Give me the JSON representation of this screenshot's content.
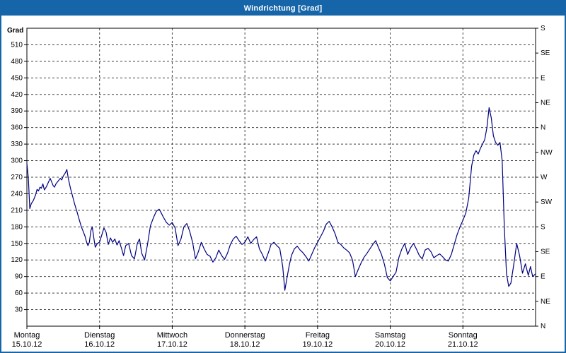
{
  "window": {
    "title": "Windrichtung [Grad]",
    "titlebar_color": "#1565a8",
    "border_color": "#1565a8"
  },
  "chart_data": {
    "type": "line",
    "title": "Windrichtung [Grad]",
    "grid": {
      "horizontal": true,
      "vertical": true,
      "style": "dashed",
      "color": "#404040"
    },
    "y_axis": {
      "label": "Grad",
      "min": 0,
      "max": 540,
      "tick_step": 30,
      "tick_labels_top_to_bottom": [
        "510",
        "480",
        "450",
        "420",
        "390",
        "360",
        "330",
        "300",
        "270",
        "240",
        "210",
        "180",
        "150",
        "120",
        "90",
        "60",
        "30"
      ]
    },
    "right_axis": {
      "tick_step": 45,
      "labels_top_to_bottom": [
        "S",
        "SE",
        "E",
        "NE",
        "N",
        "NW",
        "W",
        "SW",
        "S",
        "SE",
        "E",
        "NE",
        "N"
      ]
    },
    "x_axis": {
      "min": 0,
      "max": 7,
      "days": [
        {
          "name": "Montag",
          "date": "15.10.12",
          "x": 0
        },
        {
          "name": "Dienstag",
          "date": "16.10.12",
          "x": 1
        },
        {
          "name": "Mittwoch",
          "date": "17.10.12",
          "x": 2
        },
        {
          "name": "Donnerstag",
          "date": "18.10.12",
          "x": 3
        },
        {
          "name": "Freitag",
          "date": "19.10.12",
          "x": 4
        },
        {
          "name": "Samstag",
          "date": "20.10.12",
          "x": 5
        },
        {
          "name": "Sonntag",
          "date": "21.10.12",
          "x": 6
        }
      ]
    },
    "series": [
      {
        "name": "Windrichtung",
        "color": "#000080",
        "points": [
          [
            0.0,
            295
          ],
          [
            0.02,
            268
          ],
          [
            0.04,
            213
          ],
          [
            0.06,
            222
          ],
          [
            0.09,
            228
          ],
          [
            0.12,
            238
          ],
          [
            0.14,
            248
          ],
          [
            0.16,
            245
          ],
          [
            0.18,
            252
          ],
          [
            0.2,
            250
          ],
          [
            0.22,
            258
          ],
          [
            0.24,
            247
          ],
          [
            0.27,
            253
          ],
          [
            0.3,
            262
          ],
          [
            0.32,
            268
          ],
          [
            0.34,
            262
          ],
          [
            0.36,
            255
          ],
          [
            0.38,
            252
          ],
          [
            0.4,
            258
          ],
          [
            0.43,
            263
          ],
          [
            0.46,
            268
          ],
          [
            0.48,
            265
          ],
          [
            0.5,
            272
          ],
          [
            0.53,
            278
          ],
          [
            0.55,
            284
          ],
          [
            0.57,
            268
          ],
          [
            0.6,
            250
          ],
          [
            0.63,
            235
          ],
          [
            0.66,
            220
          ],
          [
            0.69,
            207
          ],
          [
            0.72,
            193
          ],
          [
            0.75,
            180
          ],
          [
            0.78,
            170
          ],
          [
            0.8,
            163
          ],
          [
            0.82,
            153
          ],
          [
            0.84,
            146
          ],
          [
            0.86,
            152
          ],
          [
            0.88,
            173
          ],
          [
            0.9,
            180
          ],
          [
            0.92,
            161
          ],
          [
            0.94,
            143
          ],
          [
            0.97,
            150
          ],
          [
            1.0,
            152
          ],
          [
            1.03,
            165
          ],
          [
            1.06,
            178
          ],
          [
            1.09,
            170
          ],
          [
            1.12,
            148
          ],
          [
            1.15,
            160
          ],
          [
            1.18,
            152
          ],
          [
            1.21,
            158
          ],
          [
            1.24,
            147
          ],
          [
            1.27,
            155
          ],
          [
            1.3,
            142
          ],
          [
            1.33,
            128
          ],
          [
            1.36,
            146
          ],
          [
            1.4,
            150
          ],
          [
            1.44,
            128
          ],
          [
            1.48,
            122
          ],
          [
            1.52,
            150
          ],
          [
            1.55,
            158
          ],
          [
            1.58,
            132
          ],
          [
            1.62,
            120
          ],
          [
            1.66,
            148
          ],
          [
            1.7,
            182
          ],
          [
            1.74,
            196
          ],
          [
            1.78,
            208
          ],
          [
            1.82,
            212
          ],
          [
            1.85,
            205
          ],
          [
            1.88,
            197
          ],
          [
            1.92,
            188
          ],
          [
            1.96,
            183
          ],
          [
            2.0,
            188
          ],
          [
            2.04,
            178
          ],
          [
            2.08,
            146
          ],
          [
            2.12,
            158
          ],
          [
            2.16,
            180
          ],
          [
            2.2,
            186
          ],
          [
            2.24,
            172
          ],
          [
            2.28,
            152
          ],
          [
            2.32,
            122
          ],
          [
            2.36,
            135
          ],
          [
            2.4,
            152
          ],
          [
            2.44,
            140
          ],
          [
            2.48,
            130
          ],
          [
            2.52,
            127
          ],
          [
            2.56,
            116
          ],
          [
            2.6,
            124
          ],
          [
            2.64,
            138
          ],
          [
            2.68,
            128
          ],
          [
            2.72,
            121
          ],
          [
            2.76,
            132
          ],
          [
            2.8,
            148
          ],
          [
            2.84,
            158
          ],
          [
            2.88,
            163
          ],
          [
            2.92,
            155
          ],
          [
            2.96,
            148
          ],
          [
            3.0,
            152
          ],
          [
            3.04,
            162
          ],
          [
            3.08,
            150
          ],
          [
            3.12,
            157
          ],
          [
            3.16,
            162
          ],
          [
            3.2,
            140
          ],
          [
            3.24,
            130
          ],
          [
            3.28,
            118
          ],
          [
            3.32,
            132
          ],
          [
            3.36,
            148
          ],
          [
            3.4,
            152
          ],
          [
            3.44,
            146
          ],
          [
            3.48,
            141
          ],
          [
            3.52,
            108
          ],
          [
            3.55,
            65
          ],
          [
            3.58,
            88
          ],
          [
            3.61,
            110
          ],
          [
            3.64,
            128
          ],
          [
            3.68,
            140
          ],
          [
            3.72,
            145
          ],
          [
            3.76,
            138
          ],
          [
            3.8,
            133
          ],
          [
            3.84,
            126
          ],
          [
            3.88,
            118
          ],
          [
            3.92,
            130
          ],
          [
            3.96,
            142
          ],
          [
            4.0,
            152
          ],
          [
            4.04,
            162
          ],
          [
            4.08,
            172
          ],
          [
            4.12,
            185
          ],
          [
            4.16,
            190
          ],
          [
            4.2,
            180
          ],
          [
            4.24,
            168
          ],
          [
            4.28,
            152
          ],
          [
            4.32,
            148
          ],
          [
            4.36,
            142
          ],
          [
            4.4,
            138
          ],
          [
            4.44,
            133
          ],
          [
            4.48,
            120
          ],
          [
            4.52,
            90
          ],
          [
            4.56,
            103
          ],
          [
            4.6,
            115
          ],
          [
            4.64,
            125
          ],
          [
            4.68,
            132
          ],
          [
            4.72,
            140
          ],
          [
            4.76,
            148
          ],
          [
            4.8,
            155
          ],
          [
            4.84,
            142
          ],
          [
            4.88,
            130
          ],
          [
            4.92,
            112
          ],
          [
            4.96,
            88
          ],
          [
            5.0,
            82
          ],
          [
            5.04,
            90
          ],
          [
            5.08,
            98
          ],
          [
            5.12,
            125
          ],
          [
            5.16,
            140
          ],
          [
            5.2,
            150
          ],
          [
            5.24,
            130
          ],
          [
            5.28,
            142
          ],
          [
            5.32,
            150
          ],
          [
            5.36,
            140
          ],
          [
            5.4,
            128
          ],
          [
            5.44,
            122
          ],
          [
            5.48,
            138
          ],
          [
            5.52,
            141
          ],
          [
            5.56,
            135
          ],
          [
            5.6,
            124
          ],
          [
            5.64,
            128
          ],
          [
            5.68,
            131
          ],
          [
            5.72,
            126
          ],
          [
            5.76,
            120
          ],
          [
            5.8,
            118
          ],
          [
            5.84,
            130
          ],
          [
            5.88,
            148
          ],
          [
            5.92,
            166
          ],
          [
            5.96,
            180
          ],
          [
            6.0,
            192
          ],
          [
            6.04,
            205
          ],
          [
            6.08,
            232
          ],
          [
            6.12,
            290
          ],
          [
            6.15,
            310
          ],
          [
            6.18,
            318
          ],
          [
            6.21,
            312
          ],
          [
            6.24,
            322
          ],
          [
            6.27,
            330
          ],
          [
            6.3,
            338
          ],
          [
            6.33,
            360
          ],
          [
            6.36,
            396
          ],
          [
            6.39,
            378
          ],
          [
            6.42,
            345
          ],
          [
            6.45,
            333
          ],
          [
            6.48,
            328
          ],
          [
            6.51,
            333
          ],
          [
            6.54,
            300
          ],
          [
            6.57,
            180
          ],
          [
            6.6,
            95
          ],
          [
            6.63,
            72
          ],
          [
            6.66,
            78
          ],
          [
            6.7,
            112
          ],
          [
            6.74,
            150
          ],
          [
            6.78,
            128
          ],
          [
            6.82,
            96
          ],
          [
            6.86,
            113
          ],
          [
            6.9,
            92
          ],
          [
            6.93,
            108
          ],
          [
            6.96,
            90
          ],
          [
            7.0,
            95
          ]
        ]
      }
    ]
  }
}
